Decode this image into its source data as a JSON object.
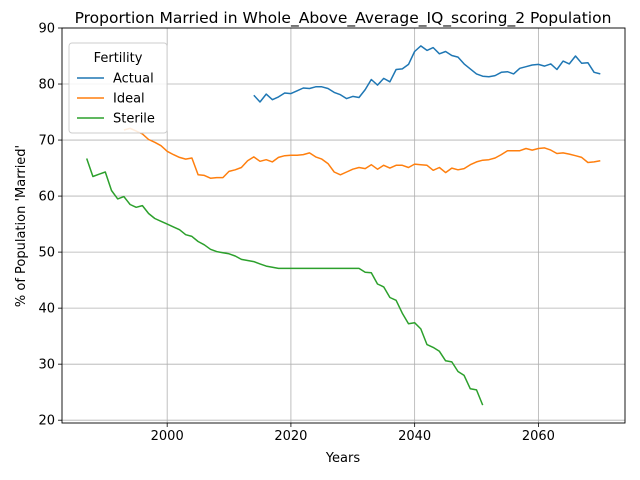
{
  "chart_data": {
    "type": "line",
    "title": "Proportion Married in Whole_Above_Average_IQ_scoring_2 Population",
    "xlabel": "Years",
    "ylabel": "% of Population 'Married'",
    "xlim": [
      1983,
      2074
    ],
    "ylim": [
      19.5,
      90
    ],
    "xticks": [
      2000,
      2020,
      2040,
      2060
    ],
    "yticks": [
      20,
      30,
      40,
      50,
      60,
      70,
      80,
      90
    ],
    "grid": true,
    "legend": {
      "title": "Fertility",
      "placement": "top-left"
    },
    "series": [
      {
        "name": "Actual",
        "color": "#1f77b4",
        "x": [
          2014,
          2015,
          2016,
          2017,
          2018,
          2019,
          2020,
          2021,
          2022,
          2023,
          2024,
          2025,
          2026,
          2027,
          2028,
          2029,
          2030,
          2031,
          2032,
          2033,
          2034,
          2035,
          2036,
          2037,
          2038,
          2039,
          2040,
          2041,
          2042,
          2043,
          2044,
          2045,
          2046,
          2047,
          2048,
          2049,
          2050,
          2051,
          2052,
          2053,
          2054,
          2055,
          2056,
          2057,
          2058,
          2059,
          2060,
          2061,
          2062,
          2063,
          2064,
          2065,
          2066,
          2067,
          2068,
          2069,
          2070
        ],
        "y": [
          78.0,
          76.8,
          78.2,
          77.2,
          77.7,
          78.4,
          78.3,
          78.8,
          79.3,
          79.2,
          79.5,
          79.5,
          79.2,
          78.5,
          78.1,
          77.4,
          77.8,
          77.6,
          79.0,
          80.8,
          79.8,
          81.0,
          80.4,
          82.6,
          82.7,
          83.5,
          85.8,
          86.8,
          86.0,
          86.5,
          85.4,
          85.8,
          85.1,
          84.8,
          83.6,
          82.7,
          81.8,
          81.4,
          81.3,
          81.5,
          82.1,
          82.2,
          81.8,
          82.8,
          83.1,
          83.4,
          83.5,
          83.2,
          83.6,
          82.6,
          84.1,
          83.6,
          85.0,
          83.7,
          83.8,
          82.1,
          81.8
        ]
      },
      {
        "name": "Ideal",
        "color": "#ff7f0e",
        "x": [
          1993,
          1994,
          1995,
          1996,
          1997,
          1998,
          1999,
          2000,
          2001,
          2002,
          2003,
          2004,
          2005,
          2006,
          2007,
          2008,
          2009,
          2010,
          2011,
          2012,
          2013,
          2014,
          2015,
          2016,
          2017,
          2018,
          2019,
          2020,
          2021,
          2022,
          2023,
          2024,
          2025,
          2026,
          2027,
          2028,
          2029,
          2030,
          2031,
          2032,
          2033,
          2034,
          2035,
          2036,
          2037,
          2038,
          2039,
          2040,
          2041,
          2042,
          2043,
          2044,
          2045,
          2046,
          2047,
          2048,
          2049,
          2050,
          2051,
          2052,
          2053,
          2054,
          2055,
          2056,
          2057,
          2058,
          2059,
          2060,
          2061,
          2062,
          2063,
          2064,
          2065,
          2066,
          2067,
          2068,
          2069,
          2070
        ],
        "y": [
          71.8,
          72.1,
          71.6,
          71.1,
          70.1,
          69.6,
          69.0,
          68.0,
          67.4,
          66.9,
          66.6,
          66.8,
          63.8,
          63.7,
          63.2,
          63.3,
          63.3,
          64.4,
          64.7,
          65.1,
          66.3,
          67.0,
          66.2,
          66.5,
          66.1,
          66.9,
          67.2,
          67.3,
          67.3,
          67.4,
          67.7,
          67.0,
          66.6,
          65.8,
          64.3,
          63.8,
          64.3,
          64.8,
          65.1,
          64.9,
          65.6,
          64.8,
          65.5,
          65.0,
          65.5,
          65.5,
          65.1,
          65.7,
          65.6,
          65.5,
          64.6,
          65.1,
          64.2,
          65.0,
          64.7,
          64.9,
          65.6,
          66.1,
          66.4,
          66.5,
          66.8,
          67.4,
          68.1,
          68.1,
          68.1,
          68.5,
          68.2,
          68.5,
          68.6,
          68.2,
          67.6,
          67.7,
          67.5,
          67.2,
          66.9,
          66.0,
          66.1,
          66.3
        ]
      },
      {
        "name": "Sterile",
        "color": "#2ca02c",
        "x": [
          1987,
          1988,
          1989,
          1990,
          1991,
          1992,
          1993,
          1994,
          1995,
          1996,
          1997,
          1998,
          1999,
          2000,
          2001,
          2002,
          2003,
          2004,
          2005,
          2006,
          2007,
          2008,
          2009,
          2010,
          2011,
          2012,
          2013,
          2014,
          2015,
          2016,
          2017,
          2018,
          2019,
          2020,
          2021,
          2022,
          2023,
          2024,
          2025,
          2026,
          2027,
          2028,
          2029,
          2030,
          2031,
          2032,
          2033,
          2034,
          2035,
          2036,
          2037,
          2038,
          2039,
          2040,
          2041,
          2042,
          2043,
          2044,
          2045,
          2046,
          2047,
          2048,
          2049,
          2050,
          2051
        ],
        "y": [
          66.7,
          63.5,
          63.9,
          64.3,
          61.0,
          59.5,
          59.9,
          58.5,
          58.0,
          58.3,
          56.9,
          56.0,
          55.5,
          55.0,
          54.5,
          54.0,
          53.1,
          52.8,
          51.9,
          51.3,
          50.5,
          50.1,
          49.9,
          49.7,
          49.3,
          48.7,
          48.5,
          48.3,
          47.9,
          47.5,
          47.3,
          47.1,
          47.1,
          47.1,
          47.1,
          47.1,
          47.1,
          47.1,
          47.1,
          47.1,
          47.1,
          47.1,
          47.1,
          47.1,
          47.1,
          46.4,
          46.3,
          44.3,
          43.8,
          41.9,
          41.4,
          39.1,
          37.2,
          37.4,
          36.3,
          33.5,
          33.0,
          32.3,
          30.6,
          30.4,
          28.7,
          28.0,
          25.6,
          25.4,
          22.7
        ]
      }
    ]
  }
}
